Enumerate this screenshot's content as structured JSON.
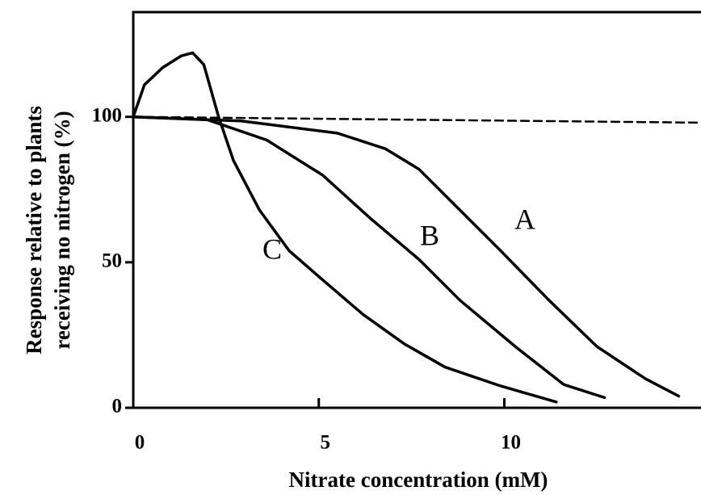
{
  "chart_data": {
    "type": "line",
    "xlabel": "Nitrate concentration (mM)",
    "ylabel": [
      "Response relative to plants",
      "receiving no nitrogen (%)"
    ],
    "xlim": [
      0,
      15.3
    ],
    "ylim": [
      0,
      136
    ],
    "xticks": [
      0,
      5,
      10
    ],
    "yticks": [
      0,
      50,
      100
    ],
    "series": [
      {
        "name": "A",
        "color": "#000000",
        "dash": false,
        "x": [
          0,
          2.9,
          5.5,
          6.8,
          7.7,
          8.8,
          9.9,
          11.2,
          12.5,
          13.8,
          14.7
        ],
        "values": [
          100,
          98.6,
          94.4,
          89,
          82,
          68,
          54,
          37,
          21,
          10,
          4
        ]
      },
      {
        "name": "B",
        "color": "#000000",
        "dash": false,
        "x": [
          0,
          2,
          3.6,
          5.1,
          6.4,
          7.7,
          8.8,
          10.3,
          11.6,
          12.7
        ],
        "values": [
          100,
          99,
          92,
          80,
          65,
          51,
          37,
          21,
          8,
          3.5
        ]
      },
      {
        "name": "C",
        "color": "#000000",
        "dash": false,
        "x": [
          0,
          0.3,
          0.8,
          1.3,
          1.6,
          1.9,
          2.3,
          2.7,
          3.4,
          4.2,
          5.1,
          6.2,
          7.3,
          8.4,
          9.9,
          11.4
        ],
        "values": [
          100,
          111,
          117,
          121,
          122,
          118,
          100,
          85,
          68,
          54,
          44,
          32,
          22,
          14,
          7.5,
          2
        ]
      },
      {
        "color": "#000000",
        "dash": true,
        "x": [
          0,
          15.3
        ],
        "values": [
          100,
          98
        ]
      }
    ]
  }
}
